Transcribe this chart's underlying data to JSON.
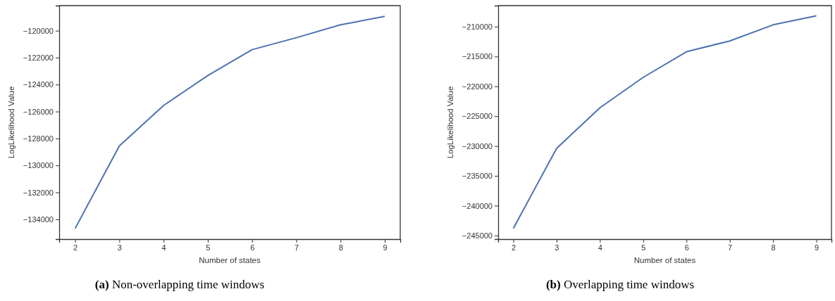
{
  "chart_data": [
    {
      "type": "line",
      "xlabel": "Number of states",
      "ylabel": "LogLikelihood Value",
      "x": [
        2,
        3,
        4,
        5,
        6,
        7,
        8,
        9
      ],
      "series": [
        {
          "color": "#4c72b0",
          "values": [
            -134680,
            -128550,
            -125550,
            -123330,
            -121410,
            -120520,
            -119560,
            -118940
          ]
        }
      ],
      "xlim": [
        1.64,
        9.35
      ],
      "xticks": [
        2,
        3,
        4,
        5,
        6,
        7,
        8,
        9
      ],
      "ylim": [
        -135470,
        -118140
      ],
      "yticks": [
        {
          "value": -134000,
          "label": "−134000"
        },
        {
          "value": -132000,
          "label": "−132000"
        },
        {
          "value": -130000,
          "label": "−130000"
        },
        {
          "value": -128000,
          "label": "−128000"
        },
        {
          "value": -126000,
          "label": "−126000"
        },
        {
          "value": -124000,
          "label": "−124000"
        },
        {
          "value": -122000,
          "label": "−122000"
        },
        {
          "value": -120000,
          "label": "−120000"
        }
      ],
      "marker": "none",
      "line_style": "solid",
      "annotations": [
        "(a) Non-overlapping time windows"
      ]
    },
    {
      "type": "line",
      "xlabel": "Number of states",
      "ylabel": "LogLikelihood Value",
      "x": [
        2,
        3,
        4,
        5,
        6,
        7,
        8,
        9
      ],
      "series": [
        {
          "color": "#4c72b0",
          "values": [
            -243800,
            -230400,
            -223600,
            -218500,
            -214200,
            -212400,
            -209700,
            -208200
          ]
        }
      ],
      "xlim": [
        1.65,
        9.35
      ],
      "xticks": [
        2,
        3,
        4,
        5,
        6,
        7,
        8,
        9
      ],
      "ylim": [
        -245600,
        -206480
      ],
      "yticks": [
        {
          "value": -245000,
          "label": "−245000"
        },
        {
          "value": -240000,
          "label": "−240000"
        },
        {
          "value": -235000,
          "label": "−235000"
        },
        {
          "value": -230000,
          "label": "−230000"
        },
        {
          "value": -225000,
          "label": "−225000"
        },
        {
          "value": -220000,
          "label": "−220000"
        },
        {
          "value": -215000,
          "label": "−215000"
        },
        {
          "value": -210000,
          "label": "−210000"
        }
      ],
      "marker": "none",
      "line_style": "solid",
      "annotations": [
        "(b) Overlapping time windows"
      ]
    }
  ]
}
